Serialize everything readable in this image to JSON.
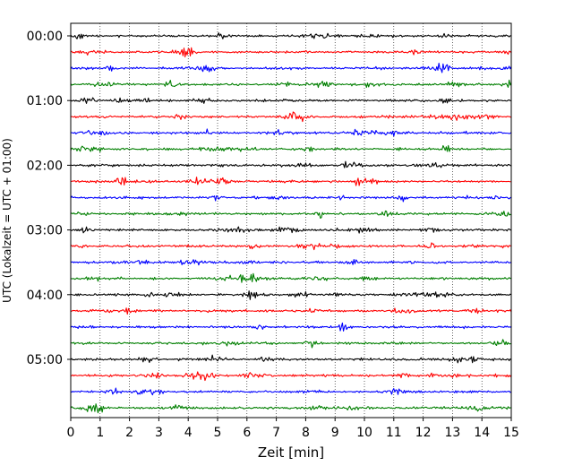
{
  "chart_data": {
    "type": "line",
    "title": "",
    "xlabel": "Zeit  [min]",
    "ylabel": "UTC (Lokalzeit = UTC + 01:00)",
    "xlim": [
      0,
      15
    ],
    "xticks": [
      "0",
      "1",
      "2",
      "3",
      "4",
      "5",
      "6",
      "7",
      "8",
      "9",
      "10",
      "11",
      "12",
      "13",
      "14",
      "15"
    ],
    "ytick_labels": [
      "00:00",
      "01:00",
      "02:00",
      "03:00",
      "04:00",
      "05:00"
    ],
    "ytick_rows": [
      0,
      4,
      8,
      12,
      16,
      20
    ],
    "trace_count": 24,
    "trace_minutes_each": 15,
    "color_cycle": [
      "#000000",
      "#ff0000",
      "#0000ff",
      "#007f00"
    ],
    "grid": "vertical dotted at each minute"
  }
}
